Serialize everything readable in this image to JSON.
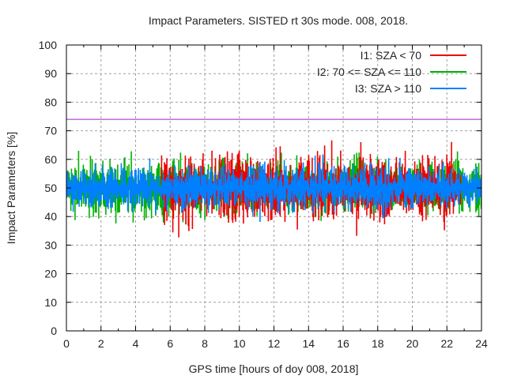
{
  "chart_data": {
    "type": "line",
    "title": "Impact Parameters. SISTED rt 30s mode. 008, 2018.",
    "xlabel": "GPS time [hours of doy 008, 2018]",
    "ylabel": "Impact Parameters [%]",
    "xlim": [
      0,
      24
    ],
    "ylim": [
      0,
      100
    ],
    "xticks": [
      "0",
      "2",
      "4",
      "6",
      "8",
      "10",
      "12",
      "14",
      "16",
      "18",
      "20",
      "22",
      "24"
    ],
    "yticks": [
      "0",
      "10",
      "20",
      "30",
      "40",
      "50",
      "60",
      "70",
      "80",
      "90",
      "100"
    ],
    "grid": true,
    "legend_position": "top-right",
    "threshold": {
      "value": 74,
      "color": "#a020c0"
    },
    "series": [
      {
        "name": "I1: SZA < 70",
        "color": "#ee0000",
        "active_range": [
          5.5,
          22.8
        ],
        "center": 50,
        "typical_spread": 6,
        "min": 31,
        "max": 68
      },
      {
        "name": "I2: 70 <= SZA <= 110",
        "color": "#00b000",
        "active_range": [
          0,
          24
        ],
        "center": 50,
        "typical_spread": 5,
        "min": 34.5,
        "max": 63
      },
      {
        "name": "I3: SZA > 110",
        "color": "#0080ff",
        "active_range": [
          0,
          24
        ],
        "center": 50,
        "typical_spread": 4,
        "min": 35,
        "max": 66
      }
    ]
  }
}
